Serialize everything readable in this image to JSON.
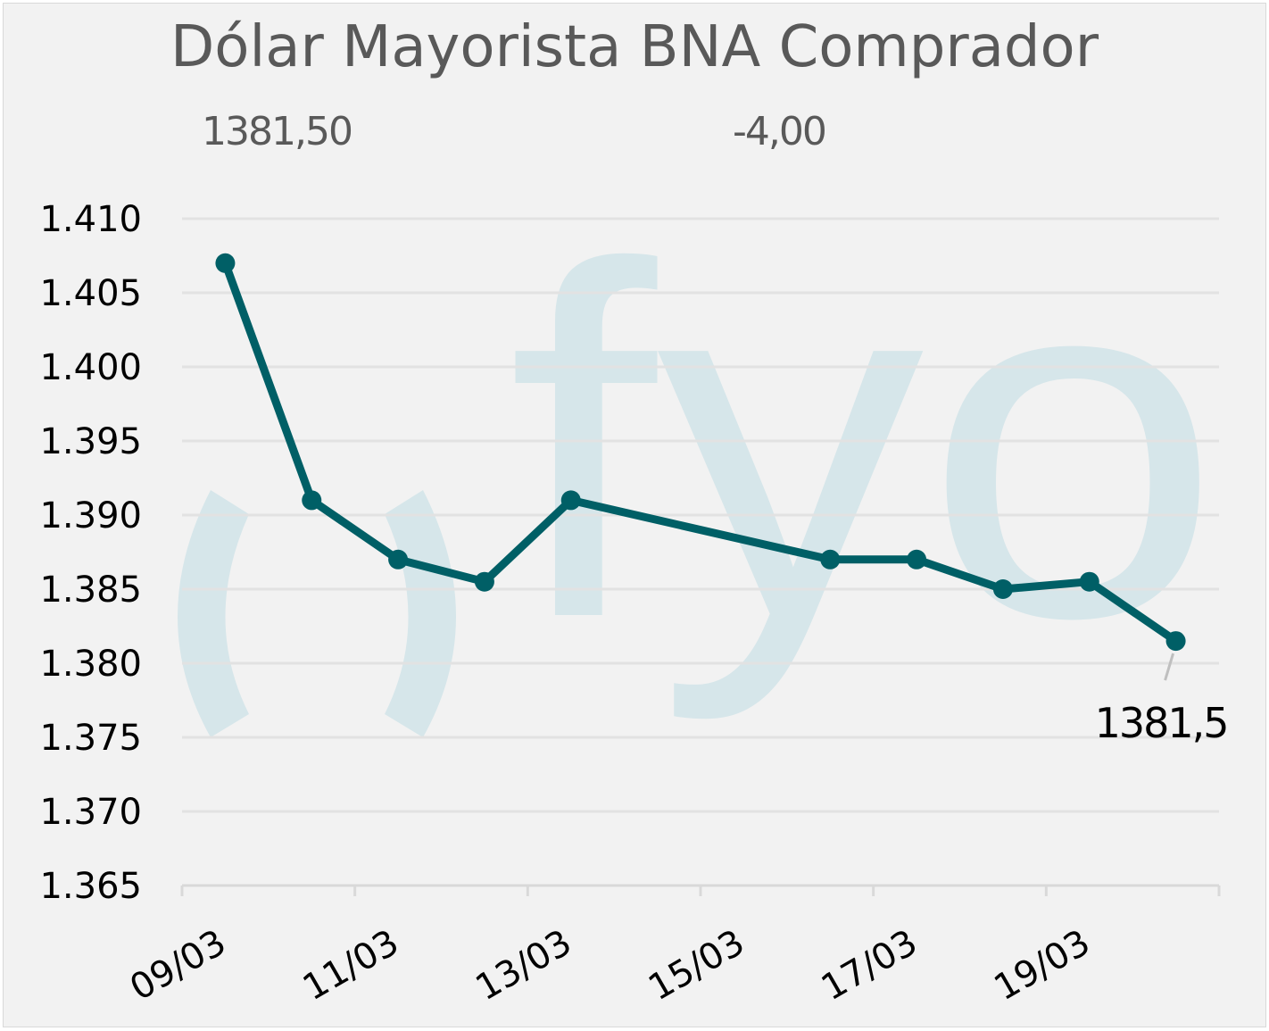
{
  "header": {
    "current_value": "1381,50",
    "change": "-4,00"
  },
  "watermark": {
    "text": "fyo",
    "color": "#d6e6ea"
  },
  "colors": {
    "series": "#005f66",
    "grid": "#e2e2e2",
    "background": "#f2f2f2"
  },
  "chart_data": {
    "type": "line",
    "title": "Dólar Mayorista BNA Comprador",
    "xlabel": "",
    "ylabel": "",
    "x_ticks": [
      "09/03",
      "11/03",
      "13/03",
      "15/03",
      "17/03",
      "19/03"
    ],
    "y_ticks": [
      "1.365",
      "1.370",
      "1.375",
      "1.380",
      "1.385",
      "1.390",
      "1.395",
      "1.400",
      "1.405",
      "1.410"
    ],
    "ylim": [
      1365,
      1410
    ],
    "grid": true,
    "legend": "none",
    "series": [
      {
        "dates": [
          "09/03",
          "10/03",
          "11/03",
          "12/03",
          "13/03",
          "16/03",
          "17/03",
          "18/03",
          "19/03",
          "20/03"
        ],
        "values": [
          1407.0,
          1391.0,
          1387.0,
          1385.5,
          1391.0,
          1387.0,
          1387.0,
          1385.0,
          1385.5,
          1381.5
        ]
      }
    ],
    "annotations": [
      {
        "date": "20/03",
        "text": "1381,5"
      }
    ]
  }
}
